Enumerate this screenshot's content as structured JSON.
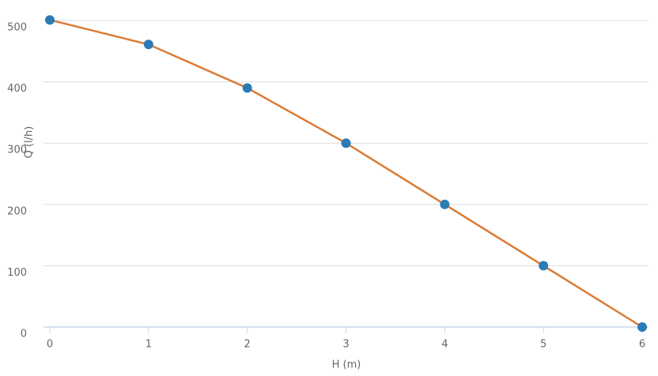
{
  "chart_data": {
    "type": "line",
    "x_label": "H (m)",
    "y_label": "Q (l/h)",
    "x": [
      0,
      1,
      2,
      3,
      4,
      5,
      6
    ],
    "series": [
      {
        "color": "#db7b34",
        "marker_color": "#2b7bb4",
        "values": [
          501,
          461,
          390,
          300,
          200,
          100,
          0
        ]
      }
    ],
    "xlim": [
      0,
      6
    ],
    "xticks": [
      0,
      1,
      2,
      3,
      4,
      5,
      6
    ],
    "ylim": [
      0,
      500
    ],
    "yticks": [
      0,
      100,
      200,
      300,
      400,
      500
    ],
    "grid": true
  }
}
